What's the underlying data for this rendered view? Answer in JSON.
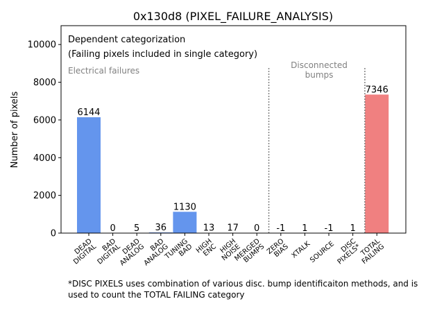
{
  "chart_data": {
    "type": "bar",
    "title": "0x130d8 (PIXEL_FAILURE_ANALYSIS)",
    "xlabel": "",
    "ylabel": "Number of pixels",
    "ylim": [
      0,
      11000
    ],
    "yticks": [
      0,
      2000,
      4000,
      6000,
      8000,
      10000
    ],
    "grid": false,
    "categories": [
      "DEAD\nDIGITAL",
      "BAD\nDIGITAL",
      "DEAD\nANALOG",
      "BAD\nANALOG",
      "TUNING\nBAD",
      "HIGH\nENC",
      "HIGH\nNOISE",
      "MERGED\nBUMPS",
      "ZERO\nBIAS",
      "XTALK",
      "SOURCE",
      "DISC\nPIXELS*",
      "TOTAL\nFAILING"
    ],
    "values": [
      6144,
      0,
      5,
      36,
      1130,
      13,
      17,
      0,
      -1,
      1,
      -1,
      1,
      7346
    ],
    "data_labels": [
      "6144",
      "0",
      "5",
      "36",
      "1130",
      "13",
      "17",
      "0",
      "-1",
      "1",
      "-1",
      "1",
      "7346"
    ],
    "bar_colors": [
      "#6495ed",
      "#6495ed",
      "#6495ed",
      "#6495ed",
      "#6495ed",
      "#6495ed",
      "#6495ed",
      "#6495ed",
      "#6495ed",
      "#6495ed",
      "#6495ed",
      "#6495ed",
      "#f08080"
    ],
    "annotations": {
      "dependent_line1": "Dependent categorization",
      "dependent_line2": "(Failing pixels included in single category)",
      "electrical": "Electrical failures",
      "disconnected_line1": "Disconnected",
      "disconnected_line2": "bumps"
    },
    "divider_color": "#808080"
  },
  "footnote": {
    "line1": "*DISC PIXELS uses combination of various disc. bump identificaiton methods, and is",
    "line2": "used to count the TOTAL FAILING category"
  }
}
